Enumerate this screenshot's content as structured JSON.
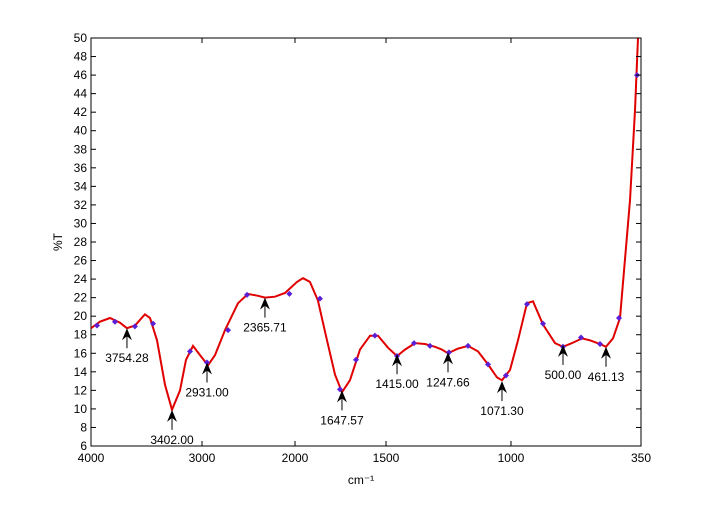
{
  "chart_data": {
    "type": "line",
    "xlabel": "cm⁻¹",
    "ylabel": "%T",
    "xlim": [
      4000,
      350
    ],
    "ylim": [
      6,
      50
    ],
    "xticks": [
      4000,
      3000,
      2000,
      1500,
      1000,
      350
    ],
    "yticks": [
      6,
      8,
      10,
      12,
      14,
      16,
      18,
      20,
      22,
      24,
      26,
      28,
      30,
      32,
      34,
      36,
      38,
      40,
      42,
      44,
      46,
      48,
      50
    ],
    "series": [
      {
        "color": "#e00000",
        "x": [
          4000,
          3919,
          3829,
          3739,
          3676,
          3604,
          3514,
          3468,
          3405,
          3333,
          3270,
          3198,
          3144,
          3081,
          3018,
          2935,
          2860,
          2753,
          2613,
          2505,
          2398,
          2323,
          2215,
          2108,
          1989,
          1956,
          1918,
          1874,
          1824,
          1780,
          1742,
          1698,
          1643,
          1588,
          1544,
          1492,
          1456,
          1424,
          1384,
          1344,
          1304,
          1276,
          1252,
          1212,
          1172,
          1132,
          1092,
          1056,
          1036,
          1004,
          965,
          920,
          890,
          840,
          780,
          740,
          695,
          645,
          605,
          555,
          525,
          490,
          455,
          405,
          380,
          365
        ],
        "values": [
          18.7,
          19.4,
          19.8,
          19.3,
          18.7,
          19.0,
          20.2,
          19.8,
          17.4,
          12.6,
          9.9,
          12.0,
          15.3,
          16.8,
          15.8,
          14.7,
          15.8,
          18.5,
          21.4,
          22.4,
          22.2,
          22.0,
          22.1,
          22.5,
          23.7,
          24.1,
          23.7,
          21.7,
          17.4,
          13.7,
          11.8,
          13.1,
          16.4,
          17.9,
          17.9,
          16.6,
          15.7,
          16.4,
          17.1,
          17.0,
          16.7,
          16.4,
          16.0,
          16.5,
          16.8,
          16.2,
          14.8,
          13.4,
          13.1,
          14.2,
          17.4,
          21.4,
          21.6,
          19.1,
          17.1,
          16.7,
          17.1,
          17.6,
          17.4,
          17.0,
          16.7,
          17.6,
          19.8,
          32.5,
          42.2,
          50
        ]
      },
      {
        "color": "#5a1fd6",
        "x": [
          3946,
          3784,
          3604,
          3441,
          3108,
          2946,
          2720,
          2516,
          2060,
          1863,
          1753,
          1665,
          1561,
          1456,
          1388,
          1324,
          1248,
          1172,
          1092,
          1020,
          920,
          840,
          740,
          650,
          555,
          460,
          370
        ],
        "values": [
          19.0,
          19.4,
          18.9,
          19.2,
          16.2,
          15.0,
          18.5,
          22.3,
          22.4,
          21.9,
          12.1,
          15.3,
          17.9,
          15.7,
          17.1,
          16.8,
          16.1,
          16.8,
          14.8,
          13.6,
          21.3,
          19.2,
          16.7,
          17.7,
          17.0,
          19.8,
          46.0
        ]
      }
    ],
    "annotations": [
      {
        "text": "3754.28",
        "x": 3676,
        "y": 18.7
      },
      {
        "text": "3402.00",
        "x": 3270,
        "y": 9.9
      },
      {
        "text": "2931.00",
        "x": 2946,
        "y": 15.0
      },
      {
        "text": "2365.71",
        "x": 2323,
        "y": 22.0
      },
      {
        "text": "1647.57",
        "x": 1742,
        "y": 12.0
      },
      {
        "text": "1415.00",
        "x": 1456,
        "y": 15.9
      },
      {
        "text": "1247.66",
        "x": 1252,
        "y": 16.1
      },
      {
        "text": "1071.30",
        "x": 1036,
        "y": 13.0
      },
      {
        "text": "500.00",
        "x": 740,
        "y": 16.9
      },
      {
        "text": "461.13",
        "x": 525,
        "y": 16.7
      }
    ]
  }
}
